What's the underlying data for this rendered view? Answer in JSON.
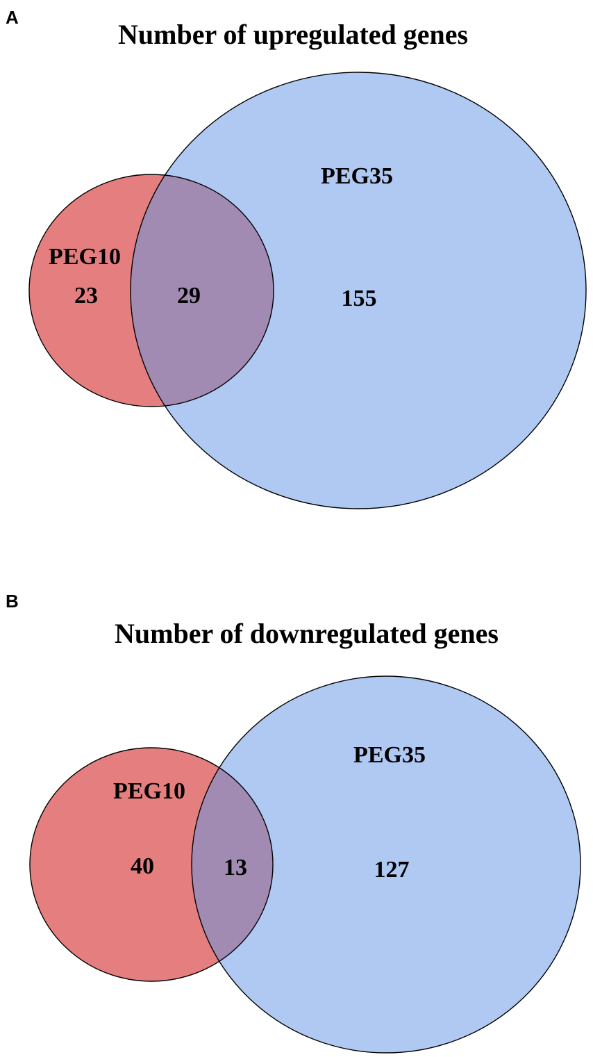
{
  "colors": {
    "left_set": "#e57f7f",
    "right_set": "#b0c9f2",
    "overlap": "#a28bb3",
    "outline": "#000000"
  },
  "panels": [
    {
      "letter": "A",
      "title": "Number of upregulated genes",
      "left_set": {
        "name": "PEG10",
        "unique": "23"
      },
      "right_set": {
        "name": "PEG35",
        "unique": "155"
      },
      "overlap": "29"
    },
    {
      "letter": "B",
      "title": "Number of downregulated genes",
      "left_set": {
        "name": "PEG10",
        "unique": "40"
      },
      "right_set": {
        "name": "PEG35",
        "unique": "127"
      },
      "overlap": "13"
    }
  ]
}
